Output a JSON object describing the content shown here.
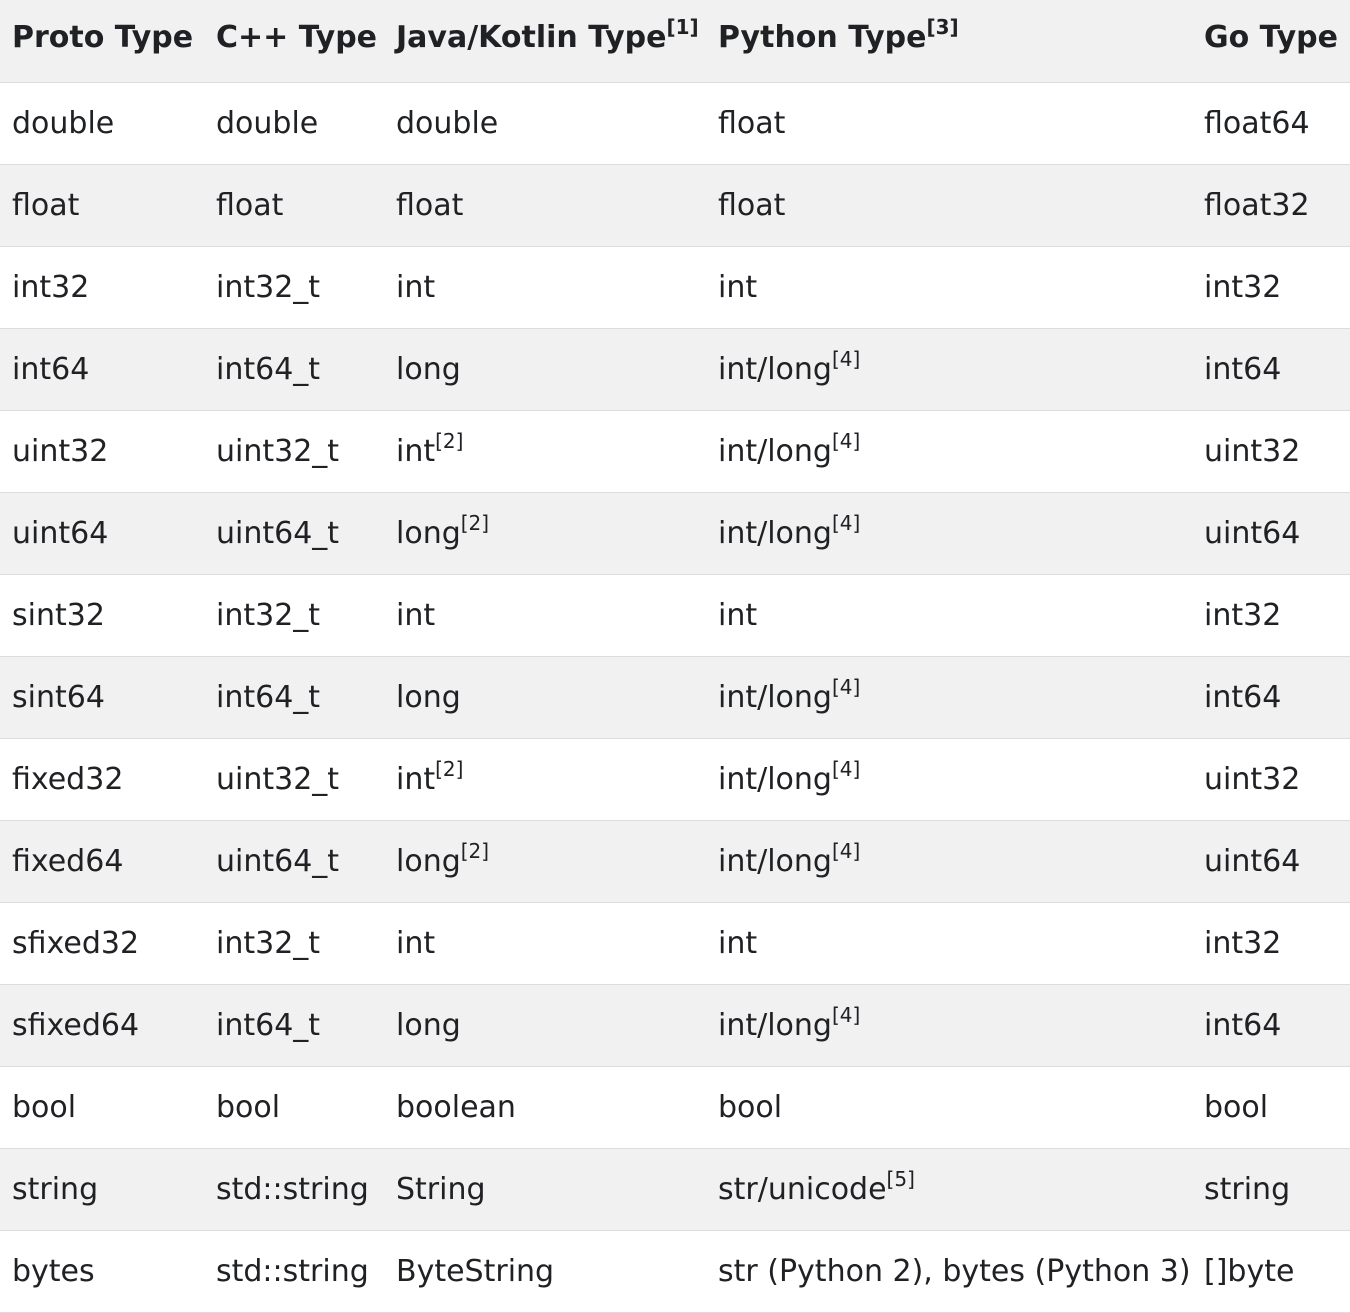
{
  "columns": [
    {
      "label": "Proto Type",
      "note": ""
    },
    {
      "label": "C++ Type",
      "note": ""
    },
    {
      "label": "Java/Kotlin Type",
      "note": "[1]"
    },
    {
      "label": "Python Type",
      "note": "[3]"
    },
    {
      "label": "Go Type",
      "note": ""
    }
  ],
  "rows": [
    {
      "proto": "double",
      "cpp": "double",
      "java": "double",
      "java_note": "",
      "python": "float",
      "python_note": "",
      "go": "float64"
    },
    {
      "proto": "float",
      "cpp": "float",
      "java": "float",
      "java_note": "",
      "python": "float",
      "python_note": "",
      "go": "float32"
    },
    {
      "proto": "int32",
      "cpp": "int32_t",
      "java": "int",
      "java_note": "",
      "python": "int",
      "python_note": "",
      "go": "int32"
    },
    {
      "proto": "int64",
      "cpp": "int64_t",
      "java": "long",
      "java_note": "",
      "python": "int/long",
      "python_note": "[4]",
      "go": "int64"
    },
    {
      "proto": "uint32",
      "cpp": "uint32_t",
      "java": "int",
      "java_note": "[2]",
      "python": "int/long",
      "python_note": "[4]",
      "go": "uint32"
    },
    {
      "proto": "uint64",
      "cpp": "uint64_t",
      "java": "long",
      "java_note": "[2]",
      "python": "int/long",
      "python_note": "[4]",
      "go": "uint64"
    },
    {
      "proto": "sint32",
      "cpp": "int32_t",
      "java": "int",
      "java_note": "",
      "python": "int",
      "python_note": "",
      "go": "int32"
    },
    {
      "proto": "sint64",
      "cpp": "int64_t",
      "java": "long",
      "java_note": "",
      "python": "int/long",
      "python_note": "[4]",
      "go": "int64"
    },
    {
      "proto": "fixed32",
      "cpp": "uint32_t",
      "java": "int",
      "java_note": "[2]",
      "python": "int/long",
      "python_note": "[4]",
      "go": "uint32"
    },
    {
      "proto": "fixed64",
      "cpp": "uint64_t",
      "java": "long",
      "java_note": "[2]",
      "python": "int/long",
      "python_note": "[4]",
      "go": "uint64"
    },
    {
      "proto": "sfixed32",
      "cpp": "int32_t",
      "java": "int",
      "java_note": "",
      "python": "int",
      "python_note": "",
      "go": "int32"
    },
    {
      "proto": "sfixed64",
      "cpp": "int64_t",
      "java": "long",
      "java_note": "",
      "python": "int/long",
      "python_note": "[4]",
      "go": "int64"
    },
    {
      "proto": "bool",
      "cpp": "bool",
      "java": "boolean",
      "java_note": "",
      "python": "bool",
      "python_note": "",
      "go": "bool"
    },
    {
      "proto": "string",
      "cpp": "std::string",
      "java": "String",
      "java_note": "",
      "python": "str/unicode",
      "python_note": "[5]",
      "go": "string"
    },
    {
      "proto": "bytes",
      "cpp": "std::string",
      "java": "ByteString",
      "java_note": "",
      "python": "str (Python 2), bytes (Python 3)",
      "python_note": "",
      "go": "[]byte"
    }
  ]
}
